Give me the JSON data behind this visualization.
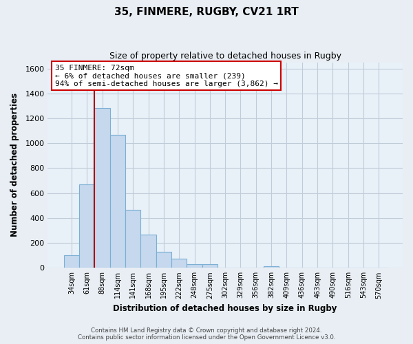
{
  "title": "35, FINMERE, RUGBY, CV21 1RT",
  "subtitle": "Size of property relative to detached houses in Rugby",
  "xlabel": "Distribution of detached houses by size in Rugby",
  "ylabel": "Number of detached properties",
  "bar_labels": [
    "34sqm",
    "61sqm",
    "88sqm",
    "114sqm",
    "141sqm",
    "168sqm",
    "195sqm",
    "222sqm",
    "248sqm",
    "275sqm",
    "302sqm",
    "329sqm",
    "356sqm",
    "382sqm",
    "409sqm",
    "436sqm",
    "463sqm",
    "490sqm",
    "516sqm",
    "543sqm",
    "570sqm"
  ],
  "bar_values": [
    100,
    670,
    1285,
    1070,
    465,
    265,
    130,
    75,
    30,
    30,
    0,
    0,
    0,
    15,
    0,
    0,
    0,
    0,
    0,
    0,
    0
  ],
  "bar_color": "#c5d8ed",
  "bar_edge_color": "#7aafd4",
  "ylim": [
    0,
    1650
  ],
  "yticks": [
    0,
    200,
    400,
    600,
    800,
    1000,
    1200,
    1400,
    1600
  ],
  "property_line_color": "#aa0000",
  "annotation_title": "35 FINMERE: 72sqm",
  "annotation_line1": "← 6% of detached houses are smaller (239)",
  "annotation_line2": "94% of semi-detached houses are larger (3,862) →",
  "annotation_box_color": "#ffffff",
  "annotation_box_edge_color": "#cc0000",
  "footer_line1": "Contains HM Land Registry data © Crown copyright and database right 2024.",
  "footer_line2": "Contains public sector information licensed under the Open Government Licence v3.0.",
  "bg_color": "#e8eef4",
  "plot_bg_color": "#e8f0f8",
  "grid_color": "#c0ccd8"
}
